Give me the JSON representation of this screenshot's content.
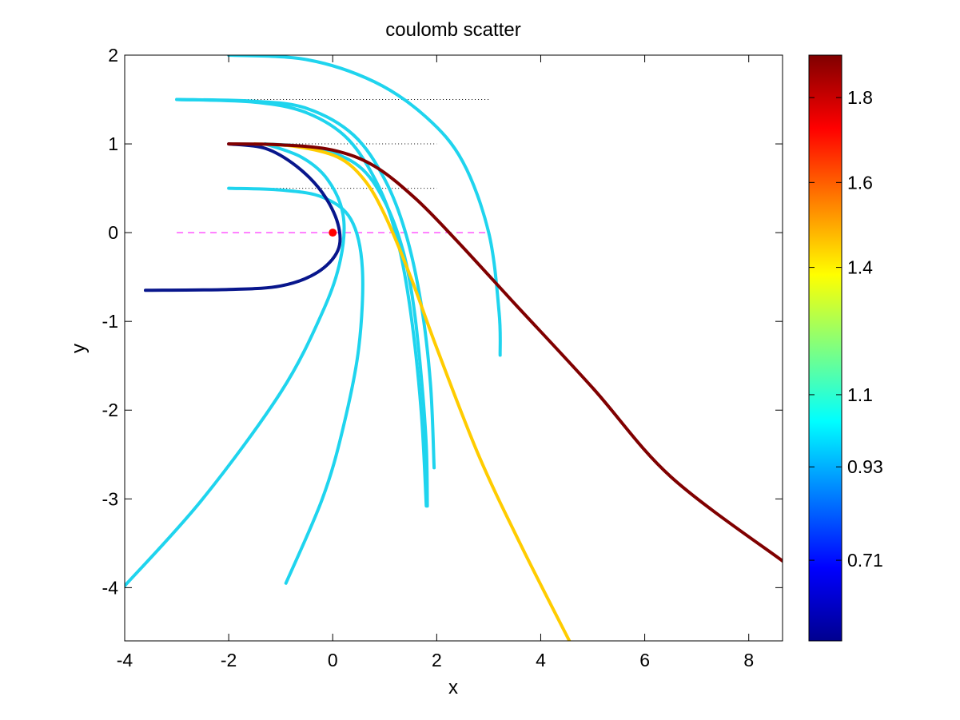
{
  "chart_data": {
    "type": "line",
    "title": "coulomb scatter",
    "xlabel": "x",
    "ylabel": "y",
    "xlim": [
      -4,
      8.65
    ],
    "ylim": [
      -4.6,
      2
    ],
    "xticks": [
      -4,
      -2,
      0,
      2,
      4,
      6,
      8
    ],
    "yticks": [
      2,
      1,
      0,
      -1,
      -2,
      -3,
      -4
    ],
    "colorbar": {
      "colormap": "jet",
      "range": [
        0.52,
        1.9
      ],
      "ticks": [
        0.71,
        0.93,
        1.1,
        1.4,
        1.6,
        1.8
      ]
    },
    "nucleus": {
      "x": 0,
      "y": 0,
      "color": "#ff0000"
    },
    "reference_lines": [
      {
        "y": 1.5,
        "x": [
          -2,
          3
        ],
        "style": "dotted",
        "color": "#000000"
      },
      {
        "y": 1.0,
        "x": [
          -2,
          2
        ],
        "style": "dotted",
        "color": "#000000"
      },
      {
        "y": 0.5,
        "x": [
          -1.2,
          2
        ],
        "style": "dotted",
        "color": "#000000"
      },
      {
        "y": 0.0,
        "x": [
          -3,
          3
        ],
        "style": "dashed",
        "color": "#ff00ff"
      }
    ],
    "series": [
      {
        "value": 0.93,
        "color": "#1fd4ee",
        "points": [
          [
            -2,
            2
          ],
          [
            -0.5,
            1.95
          ],
          [
            0.8,
            1.7
          ],
          [
            1.8,
            1.3
          ],
          [
            2.5,
            0.8
          ],
          [
            3,
            0
          ],
          [
            3.2,
            -0.9
          ],
          [
            3.22,
            -1.38
          ]
        ]
      },
      {
        "value": 0.93,
        "color": "#1fd4ee",
        "points": [
          [
            -3,
            1.5
          ],
          [
            -1.5,
            1.48
          ],
          [
            -0.5,
            1.4
          ],
          [
            0.4,
            1.1
          ],
          [
            1,
            0.6
          ],
          [
            1.4,
            0
          ],
          [
            1.7,
            -0.8
          ],
          [
            1.88,
            -1.7
          ],
          [
            1.95,
            -2.65
          ]
        ]
      },
      {
        "value": 0.93,
        "color": "#1fd4ee",
        "points": [
          [
            -3,
            1.5
          ],
          [
            -1.5,
            1.47
          ],
          [
            -0.5,
            1.35
          ],
          [
            0.3,
            1.05
          ],
          [
            0.9,
            0.5
          ],
          [
            1.25,
            -0.1
          ],
          [
            1.5,
            -0.9
          ],
          [
            1.7,
            -2
          ],
          [
            1.8,
            -3.08
          ]
        ]
      },
      {
        "value": 0.93,
        "color": "#1fd4ee",
        "points": [
          [
            -2,
            0.5
          ],
          [
            -1,
            0.48
          ],
          [
            -0.2,
            0.4
          ],
          [
            0.35,
            0.15
          ],
          [
            0.57,
            -0.4
          ],
          [
            0.5,
            -1.3
          ],
          [
            0.2,
            -2.2
          ],
          [
            -0.2,
            -3
          ],
          [
            -0.9,
            -3.95
          ]
        ]
      },
      {
        "value": 0.93,
        "color": "#1fd4ee",
        "points": [
          [
            -1.3,
            1.0
          ],
          [
            -0.6,
            0.85
          ],
          [
            -0.1,
            0.6
          ],
          [
            0.2,
            0.2
          ],
          [
            0.15,
            -0.3
          ],
          [
            -0.2,
            -0.9
          ],
          [
            -1,
            -1.8
          ],
          [
            -2.5,
            -3
          ],
          [
            -4,
            -3.98
          ]
        ]
      },
      {
        "value": 0.93,
        "color": "#1fd4ee",
        "points": [
          [
            -1.3,
            1.0
          ],
          [
            -0.3,
            0.95
          ],
          [
            0.5,
            0.75
          ],
          [
            1,
            0.35
          ],
          [
            1.35,
            -0.2
          ],
          [
            1.55,
            -0.8
          ],
          [
            1.7,
            -1.6
          ],
          [
            1.8,
            -2.4
          ],
          [
            1.82,
            -3.08
          ]
        ]
      },
      {
        "value": 0.6,
        "color": "#08168c",
        "points": [
          [
            -2,
            1.0
          ],
          [
            -1.3,
            0.95
          ],
          [
            -0.7,
            0.75
          ],
          [
            -0.2,
            0.45
          ],
          [
            0.1,
            0.1
          ],
          [
            0.1,
            -0.2
          ],
          [
            -0.3,
            -0.45
          ],
          [
            -1,
            -0.6
          ],
          [
            -2,
            -0.64
          ],
          [
            -3.6,
            -0.65
          ]
        ]
      },
      {
        "value": 1.5,
        "color": "#ffcc00",
        "points": [
          [
            -1.5,
            1.0
          ],
          [
            -0.7,
            0.97
          ],
          [
            0.1,
            0.85
          ],
          [
            0.6,
            0.6
          ],
          [
            1,
            0.2
          ],
          [
            1.5,
            -0.5
          ],
          [
            2,
            -1.3
          ],
          [
            2.8,
            -2.5
          ],
          [
            3.6,
            -3.5
          ],
          [
            4.55,
            -4.6
          ]
        ]
      },
      {
        "value": 1.9,
        "color": "#800000",
        "points": [
          [
            -2,
            1.0
          ],
          [
            -1,
            0.99
          ],
          [
            0,
            0.93
          ],
          [
            0.8,
            0.75
          ],
          [
            1.6,
            0.38
          ],
          [
            2.4,
            -0.1
          ],
          [
            3.5,
            -0.8
          ],
          [
            5,
            -1.75
          ],
          [
            6.5,
            -2.75
          ],
          [
            8.65,
            -3.7
          ]
        ]
      }
    ]
  }
}
